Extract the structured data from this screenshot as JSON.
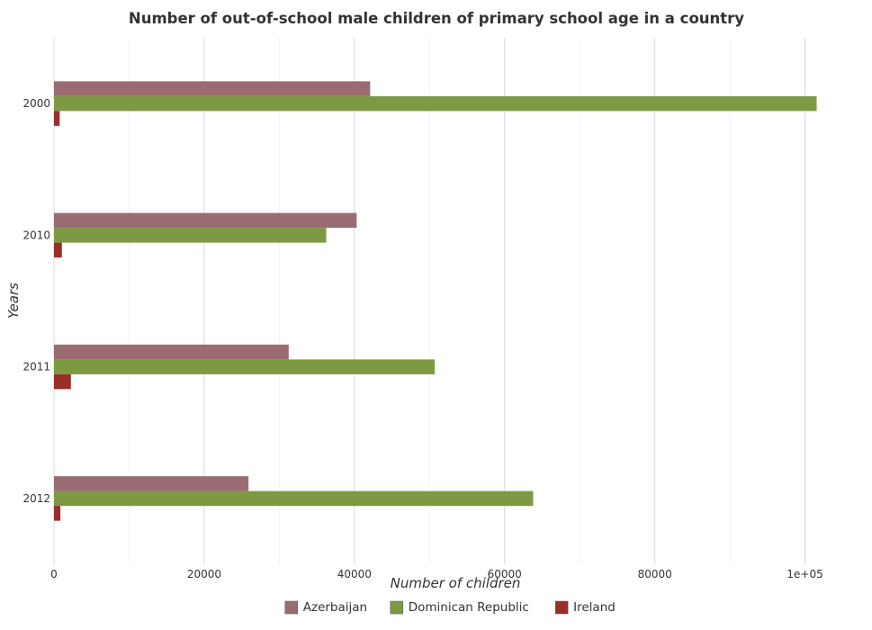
{
  "chart_data": {
    "type": "bar",
    "orientation": "horizontal",
    "title": "Number of out-of-school male children of primary school age in a country",
    "xlabel": "Number of children",
    "ylabel": "Years",
    "categories": [
      "2000",
      "2010",
      "2011",
      "2012"
    ],
    "xlim": [
      0,
      107000
    ],
    "xticks": [
      0,
      20000,
      40000,
      60000,
      80000,
      100000
    ],
    "xtick_labels": [
      "0",
      "20000",
      "40000",
      "60000",
      "80000",
      "1e+05"
    ],
    "grid": true,
    "legend_position": "bottom",
    "series": [
      {
        "name": "Azerbaijan",
        "color": "#9b6b73",
        "values": [
          42100,
          40300,
          31250,
          25900
        ]
      },
      {
        "name": "Dominican Republic",
        "color": "#7d9a42",
        "values": [
          101550,
          36250,
          50700,
          63800
        ]
      },
      {
        "name": "Ireland",
        "color": "#9a2e28",
        "values": [
          750,
          1050,
          2250,
          850
        ]
      }
    ]
  }
}
